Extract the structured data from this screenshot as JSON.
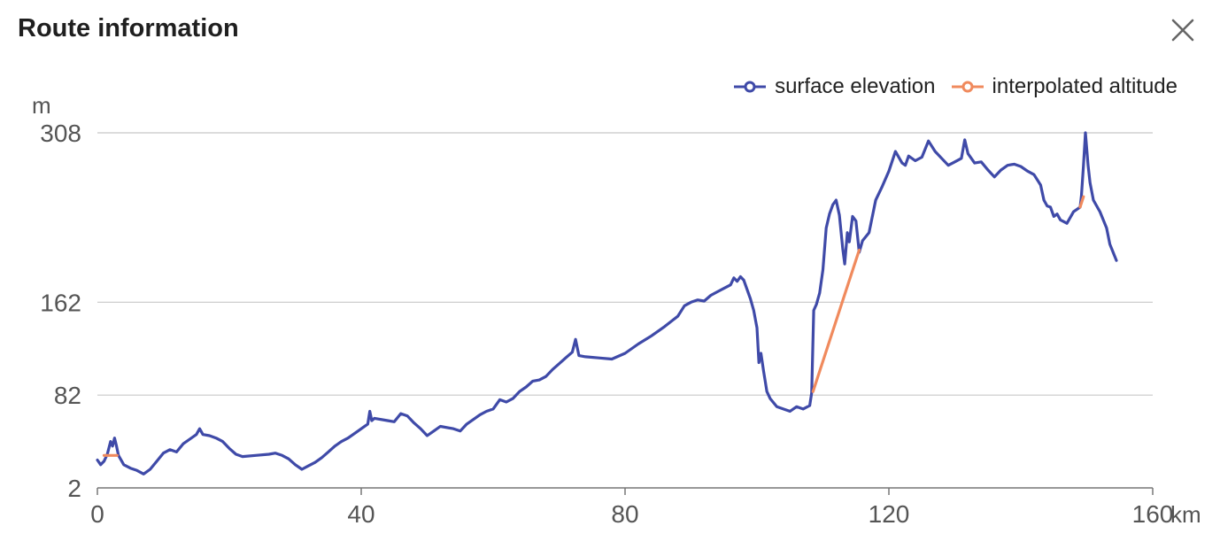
{
  "header": {
    "title": "Route information",
    "close_icon": "close-icon"
  },
  "legend": {
    "items": [
      {
        "label": "surface elevation",
        "color": "#3f4aa8"
      },
      {
        "label": "interpolated altitude",
        "color": "#f08a5d"
      }
    ]
  },
  "chart_data": {
    "type": "line",
    "title": "",
    "xlabel": "km",
    "ylabel": "m",
    "xlim": [
      0,
      160
    ],
    "ylim": [
      2,
      308
    ],
    "x_ticks": [
      "0",
      "40",
      "80",
      "120",
      "160"
    ],
    "y_ticks": [
      "2",
      "82",
      "162",
      "308"
    ],
    "grid": true,
    "legend_position": "top-right",
    "series": [
      {
        "name": "surface elevation",
        "color": "#3f4aa8",
        "points": [
          [
            0,
            26
          ],
          [
            0.5,
            22
          ],
          [
            1,
            25
          ],
          [
            1.5,
            31
          ],
          [
            2,
            42
          ],
          [
            2.3,
            38
          ],
          [
            2.6,
            45
          ],
          [
            2.9,
            38
          ],
          [
            3.2,
            30
          ],
          [
            4,
            22
          ],
          [
            5,
            19
          ],
          [
            6,
            17
          ],
          [
            7,
            14
          ],
          [
            8,
            18
          ],
          [
            9,
            25
          ],
          [
            10,
            32
          ],
          [
            11,
            35
          ],
          [
            12,
            33
          ],
          [
            13,
            40
          ],
          [
            14,
            44
          ],
          [
            15,
            48
          ],
          [
            15.5,
            53
          ],
          [
            16,
            48
          ],
          [
            17,
            47
          ],
          [
            18,
            45
          ],
          [
            19,
            42
          ],
          [
            20,
            36
          ],
          [
            21,
            31
          ],
          [
            22,
            29
          ],
          [
            24,
            30
          ],
          [
            26,
            31
          ],
          [
            27,
            32
          ],
          [
            28,
            30
          ],
          [
            29,
            27
          ],
          [
            30,
            22
          ],
          [
            31,
            18
          ],
          [
            32,
            21
          ],
          [
            33,
            24
          ],
          [
            34,
            28
          ],
          [
            35,
            33
          ],
          [
            36,
            38
          ],
          [
            37,
            42
          ],
          [
            38,
            45
          ],
          [
            39,
            49
          ],
          [
            40,
            53
          ],
          [
            41,
            57
          ],
          [
            41.3,
            68
          ],
          [
            41.6,
            60
          ],
          [
            42,
            62
          ],
          [
            44,
            60
          ],
          [
            45,
            59
          ],
          [
            46,
            66
          ],
          [
            47,
            64
          ],
          [
            48,
            58
          ],
          [
            49,
            53
          ],
          [
            50,
            47
          ],
          [
            51,
            51
          ],
          [
            52,
            55
          ],
          [
            54,
            53
          ],
          [
            55,
            51
          ],
          [
            56,
            57
          ],
          [
            57,
            61
          ],
          [
            58,
            65
          ],
          [
            59,
            68
          ],
          [
            60,
            70
          ],
          [
            61,
            78
          ],
          [
            62,
            76
          ],
          [
            63,
            79
          ],
          [
            64,
            85
          ],
          [
            65,
            89
          ],
          [
            66,
            94
          ],
          [
            67,
            95
          ],
          [
            68,
            98
          ],
          [
            69,
            104
          ],
          [
            70,
            109
          ],
          [
            71,
            114
          ],
          [
            72,
            119
          ],
          [
            72.5,
            130
          ],
          [
            73,
            116
          ],
          [
            74,
            115
          ],
          [
            76,
            114
          ],
          [
            78,
            113
          ],
          [
            80,
            118
          ],
          [
            82,
            126
          ],
          [
            84,
            133
          ],
          [
            86,
            141
          ],
          [
            88,
            150
          ],
          [
            89,
            159
          ],
          [
            90,
            162
          ],
          [
            91,
            164
          ],
          [
            92,
            163
          ],
          [
            93,
            168
          ],
          [
            94,
            171
          ],
          [
            95,
            174
          ],
          [
            96,
            177
          ],
          [
            96.5,
            183
          ],
          [
            97,
            180
          ],
          [
            97.5,
            184
          ],
          [
            98,
            181
          ],
          [
            99,
            165
          ],
          [
            99.5,
            155
          ],
          [
            100,
            140
          ],
          [
            100.3,
            110
          ],
          [
            100.6,
            118
          ],
          [
            101,
            103
          ],
          [
            101.5,
            85
          ],
          [
            102,
            79
          ],
          [
            103,
            72
          ],
          [
            104,
            70
          ],
          [
            105,
            68
          ],
          [
            106,
            72
          ],
          [
            107,
            70
          ],
          [
            108,
            73
          ],
          [
            108.3,
            84
          ],
          [
            108.6,
            155
          ],
          [
            109,
            160
          ],
          [
            109.5,
            170
          ],
          [
            110,
            190
          ],
          [
            110.5,
            226
          ],
          [
            111,
            238
          ],
          [
            111.5,
            246
          ],
          [
            112,
            250
          ],
          [
            112.5,
            237
          ],
          [
            113,
            208
          ],
          [
            113.3,
            195
          ],
          [
            113.7,
            222
          ],
          [
            114,
            214
          ],
          [
            114.5,
            236
          ],
          [
            115,
            232
          ],
          [
            115.5,
            205
          ],
          [
            116,
            215
          ],
          [
            117,
            222
          ],
          [
            118,
            250
          ],
          [
            119,
            262
          ],
          [
            120,
            275
          ],
          [
            121,
            292
          ],
          [
            122,
            282
          ],
          [
            122.5,
            280
          ],
          [
            123,
            288
          ],
          [
            124,
            284
          ],
          [
            125,
            287
          ],
          [
            126,
            301
          ],
          [
            127,
            292
          ],
          [
            128,
            286
          ],
          [
            129,
            280
          ],
          [
            130,
            283
          ],
          [
            131,
            286
          ],
          [
            131.5,
            302
          ],
          [
            132,
            290
          ],
          [
            133,
            282
          ],
          [
            134,
            283
          ],
          [
            135,
            276
          ],
          [
            136,
            270
          ],
          [
            137,
            276
          ],
          [
            138,
            280
          ],
          [
            139,
            281
          ],
          [
            140,
            279
          ],
          [
            141,
            275
          ],
          [
            142,
            272
          ],
          [
            143,
            263
          ],
          [
            143.5,
            250
          ],
          [
            144,
            245
          ],
          [
            144.5,
            244
          ],
          [
            145,
            236
          ],
          [
            145.5,
            238
          ],
          [
            146,
            233
          ],
          [
            147,
            230
          ],
          [
            148,
            240
          ],
          [
            149,
            244
          ],
          [
            149.2,
            254
          ],
          [
            149.5,
            280
          ],
          [
            149.8,
            308
          ],
          [
            150.2,
            280
          ],
          [
            150.5,
            265
          ],
          [
            151,
            250
          ],
          [
            152,
            240
          ],
          [
            153,
            226
          ],
          [
            153.5,
            212
          ],
          [
            154,
            205
          ],
          [
            154.5,
            198
          ]
        ]
      },
      {
        "name": "interpolated altitude",
        "color": "#f08a5d",
        "segments": [
          [
            [
              1.0,
              30
            ],
            [
              3.0,
              30
            ]
          ],
          [
            [
              108.5,
              85
            ],
            [
              115.5,
              207
            ]
          ],
          [
            [
              149.0,
              244
            ],
            [
              149.5,
              253
            ]
          ]
        ]
      }
    ]
  }
}
